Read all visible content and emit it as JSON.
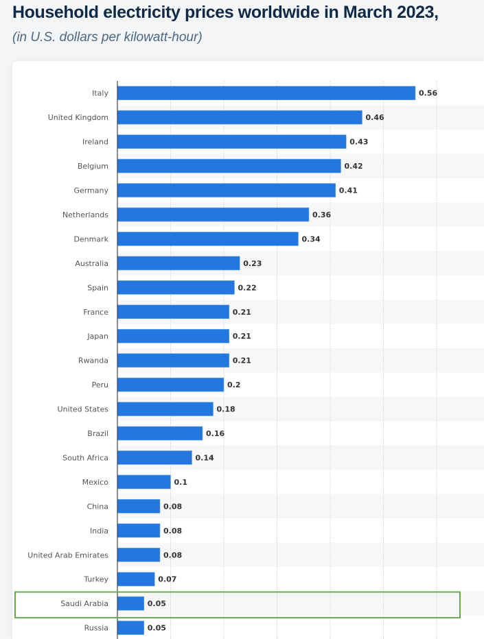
{
  "header": {
    "title": "Household electricity prices worldwide in March 2023,",
    "subtitle": "(in U.S. dollars per kilowatt-hour)"
  },
  "colors": {
    "bar": "#2477de",
    "highlight_box": "#6aa84f",
    "grid": "#dddddd",
    "stripe": "#f7f7f7"
  },
  "chart_data": {
    "type": "bar",
    "orientation": "horizontal",
    "title": "Household electricity prices worldwide in March 2023,",
    "subtitle": "(in U.S. dollars per kilowatt-hour)",
    "xlabel": "",
    "ylabel": "",
    "xlim": [
      0,
      0.7
    ],
    "grid": true,
    "grid_step": 0.1,
    "highlighted_category": "Saudi Arabia",
    "categories": [
      "Italy",
      "United Kingdom",
      "Ireland",
      "Belgium",
      "Germany",
      "Netherlands",
      "Denmark",
      "Australia",
      "Spain",
      "France",
      "Japan",
      "Rwanda",
      "Peru",
      "United States",
      "Brazil",
      "South Africa",
      "Mexico",
      "China",
      "India",
      "United Arab Emirates",
      "Turkey",
      "Saudi Arabia",
      "Russia"
    ],
    "values": [
      0.56,
      0.46,
      0.43,
      0.42,
      0.41,
      0.36,
      0.34,
      0.23,
      0.22,
      0.21,
      0.21,
      0.21,
      0.2,
      0.18,
      0.16,
      0.14,
      0.1,
      0.08,
      0.08,
      0.08,
      0.07,
      0.05,
      0.05
    ],
    "value_labels": [
      "0.56",
      "0.46",
      "0.43",
      "0.42",
      "0.41",
      "0.36",
      "0.34",
      "0.23",
      "0.22",
      "0.21",
      "0.21",
      "0.21",
      "0.2",
      "0.18",
      "0.16",
      "0.14",
      "0.1",
      "0.08",
      "0.08",
      "0.08",
      "0.07",
      "0.05",
      "0.05"
    ]
  }
}
